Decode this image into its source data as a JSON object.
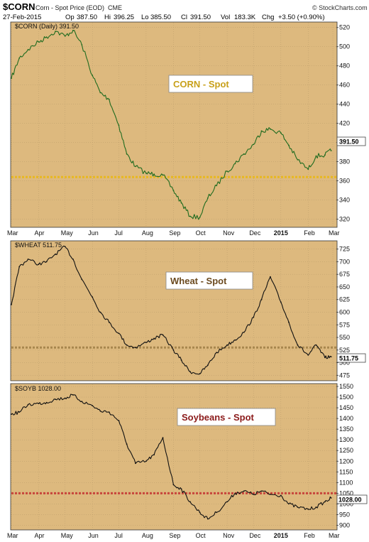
{
  "header": {
    "symbol": "$CORN",
    "description": "Corn - Spot Price (EOD)",
    "exchange": "CME",
    "date": "27-Feb-2015",
    "op_label": "Op",
    "op": "387.50",
    "hi_label": "Hi",
    "hi": "396.25",
    "lo_label": "Lo",
    "lo": "385.50",
    "cl_label": "Cl",
    "cl": "391.50",
    "vol_label": "Vol",
    "vol": "183.3K",
    "chg_label": "Chg",
    "chg": "+3.50 (+0.90%)",
    "brand": "© StockCharts.com"
  },
  "colors": {
    "panel_bg": "#ddb97e",
    "corn_line": "#1f6b1f",
    "other_line": "#111111",
    "corn_support": "#e8b820",
    "wheat_support": "#a8874e",
    "soy_support": "#c8463c",
    "corn_text": "#c8a01a",
    "wheat_text": "#6b4a1f",
    "soy_text": "#8b1a1a",
    "grid": "#b89a6a"
  },
  "x_axis_months": [
    "Mar",
    "Apr",
    "May",
    "Jun",
    "Jul",
    "Aug",
    "Sep",
    "Oct",
    "Nov",
    "Dec",
    "2015",
    "Feb",
    "Mar"
  ],
  "chart_data": [
    {
      "type": "line",
      "id": "corn",
      "panel_label": "$CORN (Daily) 391.50",
      "annotation": "CORN - Spot",
      "last_value": "391.50",
      "yticks": [
        "320",
        "340",
        "360",
        "380",
        "400",
        "420",
        "440",
        "460",
        "480",
        "500",
        "520"
      ],
      "ylim": [
        313,
        525
      ],
      "support_level": 364,
      "x": [
        "2014-03-01",
        "2014-03-10",
        "2014-03-20",
        "2014-04-01",
        "2014-04-10",
        "2014-04-20",
        "2014-05-01",
        "2014-05-10",
        "2014-05-20",
        "2014-06-01",
        "2014-06-10",
        "2014-06-20",
        "2014-07-01",
        "2014-07-10",
        "2014-07-20",
        "2014-08-01",
        "2014-08-10",
        "2014-08-20",
        "2014-09-01",
        "2014-09-10",
        "2014-09-20",
        "2014-10-01",
        "2014-10-10",
        "2014-10-20",
        "2014-11-01",
        "2014-11-10",
        "2014-11-20",
        "2014-12-01",
        "2014-12-10",
        "2014-12-20",
        "2015-01-01",
        "2015-01-10",
        "2015-01-20",
        "2015-02-01",
        "2015-02-10",
        "2015-02-20",
        "2015-02-27"
      ],
      "values": [
        467,
        488,
        497,
        505,
        510,
        516,
        511,
        517,
        502,
        470,
        452,
        445,
        418,
        388,
        375,
        368,
        367,
        366,
        350,
        337,
        323,
        322,
        342,
        355,
        370,
        378,
        388,
        398,
        412,
        414,
        410,
        397,
        382,
        372,
        386,
        387,
        391.5
      ]
    },
    {
      "type": "line",
      "id": "wheat",
      "panel_label": "$WHEAT 511.75",
      "annotation": "Wheat - Spot",
      "last_value": "511.75",
      "yticks": [
        "475",
        "500",
        "525",
        "550",
        "575",
        "600",
        "625",
        "650",
        "675",
        "700",
        "725"
      ],
      "ylim": [
        467,
        740
      ],
      "support_level": 530,
      "x": [
        "2014-03-01",
        "2014-03-10",
        "2014-03-20",
        "2014-04-01",
        "2014-04-10",
        "2014-04-20",
        "2014-05-01",
        "2014-05-10",
        "2014-05-20",
        "2014-06-01",
        "2014-06-10",
        "2014-06-20",
        "2014-07-01",
        "2014-07-10",
        "2014-07-20",
        "2014-08-01",
        "2014-08-10",
        "2014-08-20",
        "2014-09-01",
        "2014-09-10",
        "2014-09-20",
        "2014-10-01",
        "2014-10-10",
        "2014-10-20",
        "2014-11-01",
        "2014-11-10",
        "2014-11-20",
        "2014-12-01",
        "2014-12-10",
        "2014-12-20",
        "2015-01-01",
        "2015-01-10",
        "2015-01-20",
        "2015-02-01",
        "2015-02-10",
        "2015-02-20",
        "2015-02-27"
      ],
      "values": [
        615,
        690,
        705,
        695,
        700,
        715,
        730,
        705,
        665,
        630,
        600,
        580,
        558,
        535,
        530,
        540,
        548,
        555,
        525,
        505,
        482,
        478,
        495,
        520,
        535,
        545,
        560,
        590,
        625,
        670,
        620,
        580,
        535,
        515,
        535,
        510,
        511.75
      ]
    },
    {
      "type": "line",
      "id": "soybeans",
      "panel_label": "$SOYB 1028.00",
      "annotation": "Soybeans - Spot",
      "last_value": "1028.00",
      "yticks": [
        "900",
        "950",
        "1000",
        "1050",
        "1100",
        "1150",
        "1200",
        "1250",
        "1300",
        "1350",
        "1400",
        "1450",
        "1500",
        "1550"
      ],
      "ylim": [
        885,
        1560
      ],
      "support_level": 1050,
      "x": [
        "2014-03-01",
        "2014-03-10",
        "2014-03-20",
        "2014-04-01",
        "2014-04-10",
        "2014-04-20",
        "2014-05-01",
        "2014-05-10",
        "2014-05-20",
        "2014-06-01",
        "2014-06-10",
        "2014-06-20",
        "2014-07-01",
        "2014-07-10",
        "2014-07-20",
        "2014-08-01",
        "2014-08-10",
        "2014-08-20",
        "2014-09-01",
        "2014-09-10",
        "2014-09-20",
        "2014-10-01",
        "2014-10-10",
        "2014-10-20",
        "2014-11-01",
        "2014-11-10",
        "2014-11-20",
        "2014-12-01",
        "2014-12-10",
        "2014-12-20",
        "2015-01-01",
        "2015-01-10",
        "2015-01-20",
        "2015-02-01",
        "2015-02-10",
        "2015-02-20",
        "2015-02-27"
      ],
      "values": [
        1420,
        1430,
        1465,
        1470,
        1475,
        1490,
        1495,
        1510,
        1480,
        1460,
        1435,
        1430,
        1390,
        1280,
        1190,
        1200,
        1230,
        1310,
        1090,
        1070,
        1010,
        960,
        930,
        960,
        1010,
        1050,
        1060,
        1045,
        1060,
        1045,
        1040,
        1000,
        985,
        975,
        985,
        1010,
        1028
      ]
    }
  ]
}
